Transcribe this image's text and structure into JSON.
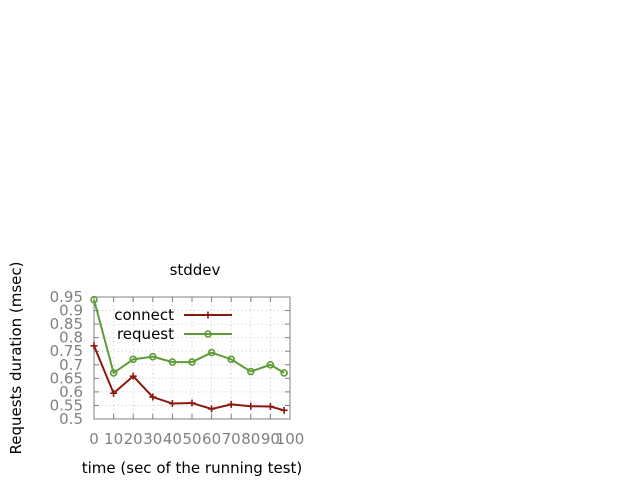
{
  "chart_data": {
    "type": "line",
    "title": "stddev",
    "xlabel": "time (sec of the running test)",
    "ylabel": "Requests duration (msec)",
    "xlim": [
      0,
      100
    ],
    "ylim": [
      0.5,
      0.95
    ],
    "x_ticks": [
      {
        "value": 0,
        "label": "0"
      },
      {
        "value": 10,
        "label": "10"
      },
      {
        "value": 20,
        "label": "20"
      },
      {
        "value": 30,
        "label": "30"
      },
      {
        "value": 40,
        "label": "40"
      },
      {
        "value": 50,
        "label": "50"
      },
      {
        "value": 60,
        "label": "60"
      },
      {
        "value": 70,
        "label": "70"
      },
      {
        "value": 80,
        "label": "80"
      },
      {
        "value": 90,
        "label": "90"
      },
      {
        "value": 100,
        "label": "100"
      }
    ],
    "y_ticks": [
      {
        "value": 0.5,
        "label": "0.5"
      },
      {
        "value": 0.55,
        "label": "0.55"
      },
      {
        "value": 0.6,
        "label": "0.6"
      },
      {
        "value": 0.65,
        "label": "0.65"
      },
      {
        "value": 0.7,
        "label": "0.7"
      },
      {
        "value": 0.75,
        "label": "0.75"
      },
      {
        "value": 0.8,
        "label": "0.8"
      },
      {
        "value": 0.85,
        "label": "0.85"
      },
      {
        "value": 0.9,
        "label": "0.9"
      },
      {
        "value": 0.95,
        "label": "0.95"
      }
    ],
    "grid": true,
    "legend_position": "top-right",
    "x": [
      0,
      10,
      20,
      30,
      40,
      50,
      60,
      70,
      80,
      90,
      97
    ],
    "series": [
      {
        "name": "connect",
        "color": "#8b1a0e",
        "marker": "plus",
        "values": [
          0.77,
          0.595,
          0.658,
          0.581,
          0.557,
          0.559,
          0.537,
          0.554,
          0.547,
          0.546,
          0.532
        ]
      },
      {
        "name": "request",
        "color": "#5e9c36",
        "marker": "circle",
        "values": [
          0.94,
          0.67,
          0.72,
          0.73,
          0.71,
          0.71,
          0.745,
          0.72,
          0.675,
          0.7,
          0.67
        ]
      }
    ]
  }
}
